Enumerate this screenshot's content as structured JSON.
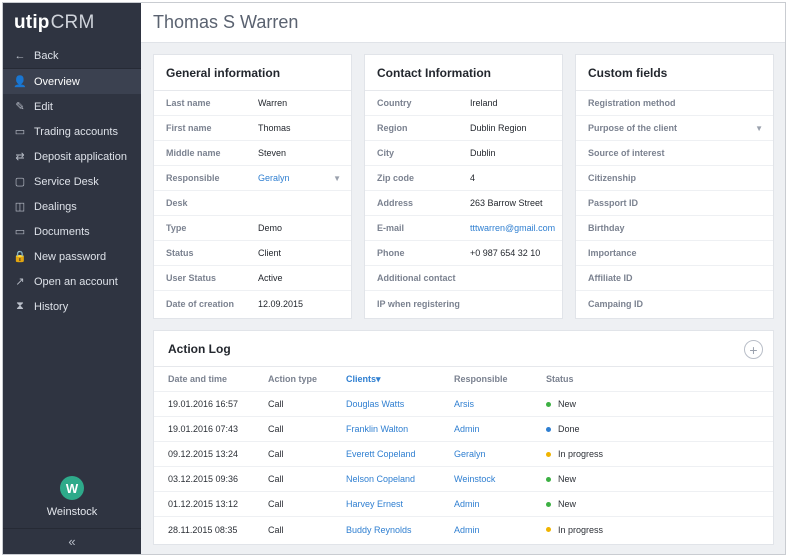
{
  "app": {
    "logo_main": "utip",
    "logo_sub": "CRM"
  },
  "sidebar": {
    "back_label": "Back",
    "items": [
      {
        "label": "Overview",
        "icon": "user-icon",
        "glyph": "👤",
        "active": true
      },
      {
        "label": "Edit",
        "icon": "edit-icon",
        "glyph": "✎"
      },
      {
        "label": "Trading accounts",
        "icon": "accounts-icon",
        "glyph": "▭"
      },
      {
        "label": "Deposit application",
        "icon": "transfer-icon",
        "glyph": "⇄"
      },
      {
        "label": "Service Desk",
        "icon": "desk-icon",
        "glyph": "▢"
      },
      {
        "label": "Dealings",
        "icon": "briefcase-icon",
        "glyph": "◫"
      },
      {
        "label": "Documents",
        "icon": "folder-icon",
        "glyph": "▭"
      },
      {
        "label": "New password",
        "icon": "lock-icon",
        "glyph": "🔒"
      },
      {
        "label": "Open an account",
        "icon": "external-link-icon",
        "glyph": "↗"
      },
      {
        "label": "History",
        "icon": "hourglass-icon",
        "glyph": "⧗"
      }
    ],
    "user": {
      "initial": "W",
      "name": "Weinstock"
    },
    "collapse_glyph": "«"
  },
  "header": {
    "title": "Thomas S Warren"
  },
  "general": {
    "title": "General information",
    "rows": [
      {
        "label": "Last name",
        "value": "Warren"
      },
      {
        "label": "First name",
        "value": "Thomas"
      },
      {
        "label": "Middle name",
        "value": "Steven"
      },
      {
        "label": "Responsible",
        "value": "Geralyn"
      },
      {
        "label": "Desk",
        "value": ""
      },
      {
        "label": "Type",
        "value": "Demo"
      },
      {
        "label": "Status",
        "value": "Client"
      },
      {
        "label": "User Status",
        "value": "Active"
      },
      {
        "label": "Date of creation",
        "value": "12.09.2015"
      }
    ]
  },
  "contact": {
    "title": "Contact Information",
    "rows": [
      {
        "label": "Country",
        "value": "Ireland"
      },
      {
        "label": "Region",
        "value": "Dublin Region"
      },
      {
        "label": "City",
        "value": "Dublin"
      },
      {
        "label": "Zip code",
        "value": "4"
      },
      {
        "label": "Address",
        "value": "263 Barrow Street"
      },
      {
        "label": "E-mail",
        "value": "tttwarren@gmail.com"
      },
      {
        "label": "Phone",
        "value": "+0 987 654 32 10"
      },
      {
        "label": "Additional contact",
        "value": ""
      },
      {
        "label": "IP when registering",
        "value": ""
      }
    ]
  },
  "custom": {
    "title": "Custom fields",
    "rows": [
      {
        "label": "Registration method"
      },
      {
        "label": "Purpose of the client"
      },
      {
        "label": "Source of interest"
      },
      {
        "label": "Citizenship"
      },
      {
        "label": "Passport ID"
      },
      {
        "label": "Birthday"
      },
      {
        "label": "Importance"
      },
      {
        "label": "Affiliate ID"
      },
      {
        "label": "Campaing ID"
      }
    ]
  },
  "dropdown_caret": "▼",
  "action_log": {
    "title": "Action Log",
    "add_glyph": "+",
    "columns": [
      "Date and time",
      "Action type",
      "Clients▾",
      "Responsible",
      "Status"
    ],
    "status_colors": {
      "New": "#3cb043",
      "Done": "#2f7fd1",
      "In progress": "#f0b400"
    },
    "rows": [
      {
        "date": "19.01.2016 16:57",
        "type": "Call",
        "client": "Douglas Watts",
        "responsible": "Arsis",
        "status": "New"
      },
      {
        "date": "19.01.2016 07:43",
        "type": "Call",
        "client": "Franklin Walton",
        "responsible": "Admin",
        "status": "Done"
      },
      {
        "date": "09.12.2015 13:24",
        "type": "Call",
        "client": "Everett Copeland",
        "responsible": "Geralyn",
        "status": "In progress"
      },
      {
        "date": "03.12.2015 09:36",
        "type": "Call",
        "client": "Nelson Copeland",
        "responsible": "Weinstock",
        "status": "New"
      },
      {
        "date": "01.12.2015 13:12",
        "type": "Call",
        "client": "Harvey Ernest",
        "responsible": "Admin",
        "status": "New"
      },
      {
        "date": "28.11.2015 08:35",
        "type": "Call",
        "client": "Buddy Reynolds",
        "responsible": "Admin",
        "status": "In progress"
      }
    ]
  }
}
